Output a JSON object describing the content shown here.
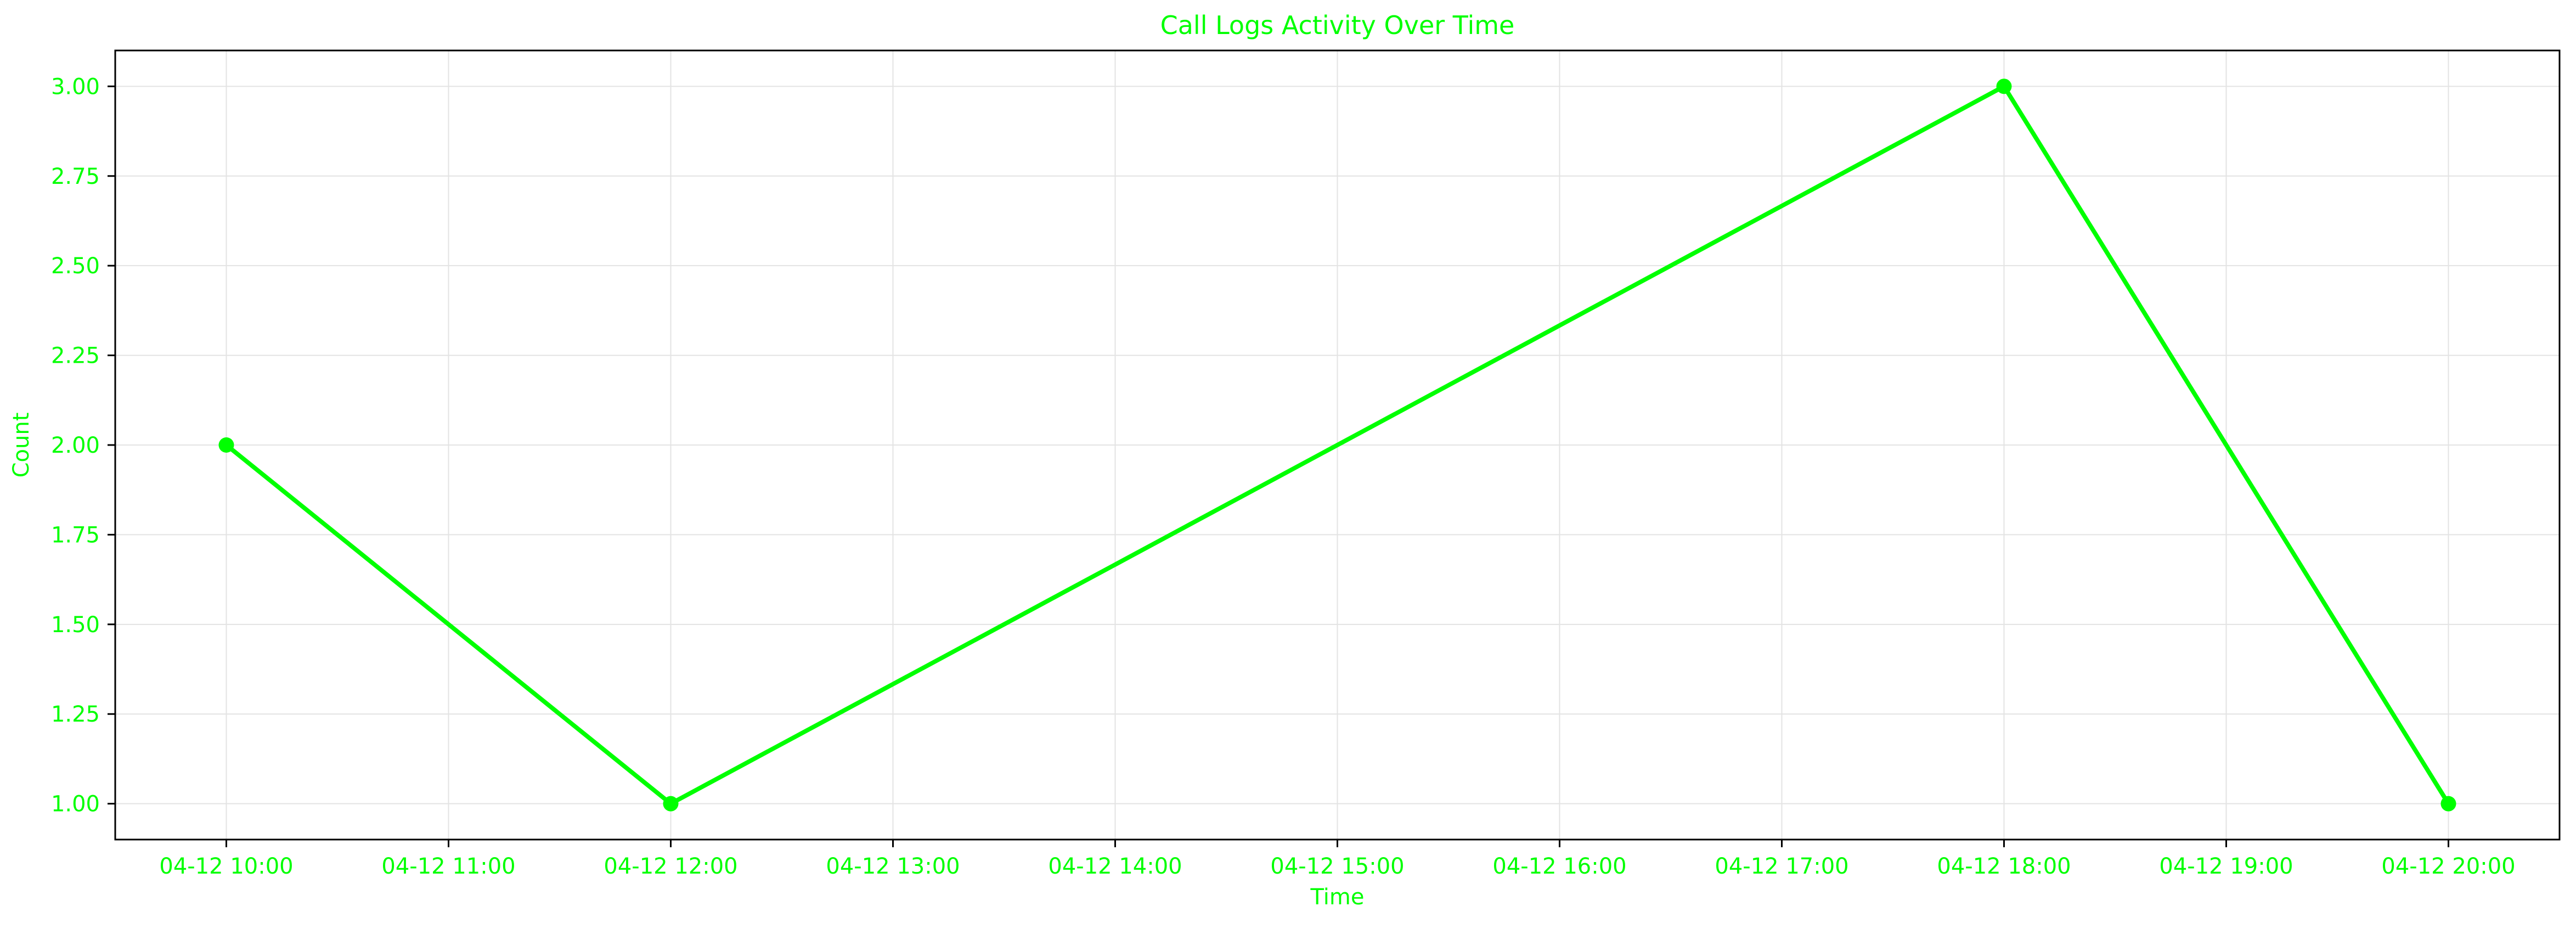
{
  "colors": {
    "line": "#00ff00",
    "text": "#00ff00",
    "grid": "#e3e3e3",
    "axes": "#000000",
    "background": "#ffffff"
  },
  "chart_data": {
    "type": "line",
    "title": "Call Logs Activity Over Time",
    "xlabel": "Time",
    "ylabel": "Count",
    "grid": true,
    "x_ticks": [
      "04-12 10:00",
      "04-12 11:00",
      "04-12 12:00",
      "04-12 13:00",
      "04-12 14:00",
      "04-12 15:00",
      "04-12 16:00",
      "04-12 17:00",
      "04-12 18:00",
      "04-12 19:00",
      "04-12 20:00"
    ],
    "y_ticks": [
      "1.00",
      "1.25",
      "1.50",
      "1.75",
      "2.00",
      "2.25",
      "2.50",
      "2.75",
      "3.00"
    ],
    "xlim": [
      "04-12 09:30",
      "04-12 20:30"
    ],
    "ylim": [
      0.9,
      3.1
    ],
    "x": [
      "04-12 10:00",
      "04-12 12:00",
      "04-12 18:00",
      "04-12 20:00"
    ],
    "series": [
      {
        "values": [
          2,
          1,
          3,
          1
        ]
      }
    ]
  }
}
